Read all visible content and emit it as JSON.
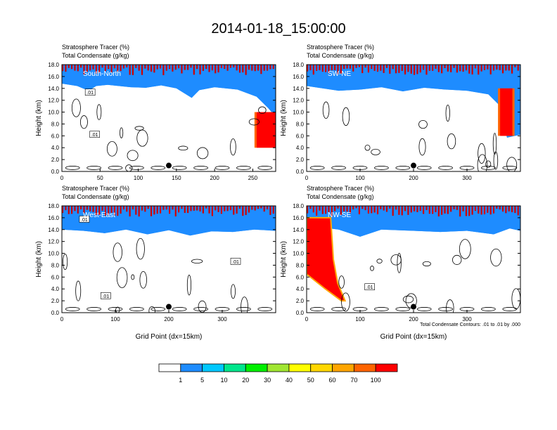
{
  "figure": {
    "title": "2014-01-18_15:00:00",
    "footnote": "Total Condensate Contours: .01 to .01 by .000"
  },
  "colors": {
    "levels": [
      "#ffffff",
      "#1e8cff",
      "#00c8ff",
      "#00e68c",
      "#00f000",
      "#a0e632",
      "#ffff00",
      "#ffd700",
      "#ffa500",
      "#ff6400",
      "#ff0000"
    ],
    "contour": "#000000",
    "marker": "#000000"
  },
  "chart_data": [
    {
      "type": "heatmap",
      "panel": "South-North",
      "title_lines": [
        "Stratosphere Tracer   (%)",
        "Total Condensate   (g/kg)"
      ],
      "label": "South-North",
      "xlabel": "",
      "ylabel": "Height (km)",
      "xlim": [
        0,
        280
      ],
      "ylim": [
        0,
        18
      ],
      "xticks": [
        0,
        50,
        100,
        150,
        200,
        250
      ],
      "yticks": [
        0,
        2,
        4,
        6,
        8,
        10,
        12,
        14,
        16,
        18
      ],
      "ytick_labels": [
        "0.0",
        "2.0",
        "4.0",
        "6.0",
        "8.0",
        "10.0",
        "12.0",
        "14.0",
        "16.0",
        "18.0"
      ],
      "tracer_front_km": [
        [
          0,
          15.6
        ],
        [
          20,
          15.2
        ],
        [
          35,
          14.4
        ],
        [
          45,
          15.2
        ],
        [
          60,
          15.4
        ],
        [
          90,
          15.0
        ],
        [
          110,
          14.9
        ],
        [
          130,
          15.3
        ],
        [
          150,
          14.8
        ],
        [
          170,
          13.2
        ],
        [
          180,
          14.5
        ],
        [
          200,
          15.0
        ],
        [
          230,
          14.6
        ],
        [
          255,
          13.4
        ],
        [
          270,
          11.5
        ],
        [
          280,
          10.0
        ]
      ],
      "intrusions": [
        {
          "x": [
            255,
            280
          ],
          "bottom_km": 4.0,
          "top_km": 10.0
        }
      ],
      "contour_labels": [
        {
          "text": ".01",
          "x": 37,
          "y": 13.3
        },
        {
          "text": ".01",
          "x": 43,
          "y": 6.2
        }
      ],
      "marker": {
        "x": 140,
        "y": 1.0
      }
    },
    {
      "type": "heatmap",
      "panel": "SW-NE",
      "title_lines": [
        "Stratosphere Tracer   (%)",
        "Total Condensate   (g/kg)"
      ],
      "label": "SW-NE",
      "xlabel": "",
      "ylabel": "Height (km)",
      "xlim": [
        0,
        400
      ],
      "ylim": [
        0,
        18
      ],
      "xticks": [
        0,
        100,
        200,
        300
      ],
      "yticks": [
        0,
        2,
        4,
        6,
        8,
        10,
        12,
        14,
        16,
        18
      ],
      "ytick_labels": [
        "0.0",
        "2.0",
        "4.0",
        "6.0",
        "8.0",
        "10.0",
        "12.0",
        "14.0",
        "16.0",
        "18.0"
      ],
      "tracer_front_km": [
        [
          0,
          15.2
        ],
        [
          30,
          14.8
        ],
        [
          60,
          14.4
        ],
        [
          100,
          14.6
        ],
        [
          140,
          15.0
        ],
        [
          180,
          14.3
        ],
        [
          220,
          14.9
        ],
        [
          260,
          14.6
        ],
        [
          300,
          14.4
        ],
        [
          340,
          13.8
        ],
        [
          360,
          12.0
        ],
        [
          370,
          8.0
        ],
        [
          375,
          6.5
        ],
        [
          400,
          7.0
        ]
      ],
      "intrusions": [
        {
          "x": [
            362,
            385
          ],
          "bottom_km": 6.0,
          "top_km": 14.0
        }
      ],
      "contour_labels": [],
      "marker": {
        "x": 200,
        "y": 1.0
      }
    },
    {
      "type": "heatmap",
      "panel": "West-East",
      "title_lines": [
        "Stratosphere Tracer   (%)",
        "Total Condensate   (g/kg)"
      ],
      "label": "West-East",
      "xlabel": "Grid Point (dx=15km)",
      "ylabel": "Height (km)",
      "xlim": [
        0,
        400
      ],
      "ylim": [
        0,
        18
      ],
      "xticks": [
        0,
        100,
        200,
        300
      ],
      "yticks": [
        0,
        2,
        4,
        6,
        8,
        10,
        12,
        14,
        16,
        18
      ],
      "ytick_labels": [
        "0.0",
        "2.0",
        "4.0",
        "6.0",
        "8.0",
        "10.0",
        "12.0",
        "14.0",
        "16.0",
        "18.0"
      ],
      "tracer_front_km": [
        [
          0,
          14.8
        ],
        [
          40,
          14.6
        ],
        [
          80,
          14.2
        ],
        [
          120,
          14.8
        ],
        [
          160,
          14.0
        ],
        [
          200,
          14.7
        ],
        [
          240,
          13.8
        ],
        [
          280,
          14.5
        ],
        [
          320,
          14.4
        ],
        [
          360,
          14.8
        ],
        [
          400,
          14.6
        ]
      ],
      "intrusions": [],
      "contour_labels": [
        {
          "text": ".01",
          "x": 42,
          "y": 15.7
        },
        {
          "text": ".01",
          "x": 325,
          "y": 8.6
        },
        {
          "text": ".01",
          "x": 82,
          "y": 2.8
        }
      ],
      "marker": {
        "x": 200,
        "y": 1.0
      }
    },
    {
      "type": "heatmap",
      "panel": "NW-SE",
      "title_lines": [
        "Stratosphere Tracer   (%)",
        "Total Condensate   (g/kg)"
      ],
      "label": "NW-SE",
      "xlabel": "Grid Point (dx=15km)",
      "ylabel": "Height (km)",
      "xlim": [
        0,
        400
      ],
      "ylim": [
        0,
        18
      ],
      "xticks": [
        0,
        100,
        200,
        300
      ],
      "yticks": [
        0,
        2,
        4,
        6,
        8,
        10,
        12,
        14,
        16,
        18
      ],
      "ytick_labels": [
        "0.0",
        "2.0",
        "4.0",
        "6.0",
        "8.0",
        "10.0",
        "12.0",
        "14.0",
        "16.0",
        "18.0"
      ],
      "tracer_front_km": [
        [
          0,
          15.5
        ],
        [
          60,
          14.8
        ],
        [
          100,
          13.6
        ],
        [
          140,
          14.8
        ],
        [
          200,
          14.6
        ],
        [
          250,
          14.4
        ],
        [
          300,
          14.6
        ],
        [
          350,
          14.0
        ],
        [
          380,
          15.0
        ],
        [
          400,
          14.6
        ]
      ],
      "intrusions": [
        {
          "polygon": [
            [
              0,
              16
            ],
            [
              45,
              16
            ],
            [
              50,
              9
            ],
            [
              58,
              5
            ],
            [
              72,
              2
            ],
            [
              65,
              2
            ],
            [
              35,
              4
            ],
            [
              0,
              6.5
            ]
          ]
        }
      ],
      "contour_labels": [
        {
          "text": ".01",
          "x": 118,
          "y": 4.3
        }
      ],
      "marker": {
        "x": 200,
        "y": 1.0
      }
    }
  ],
  "colorbar": {
    "labels": [
      "1",
      "5",
      "10",
      "20",
      "30",
      "40",
      "50",
      "60",
      "70",
      "100"
    ]
  }
}
